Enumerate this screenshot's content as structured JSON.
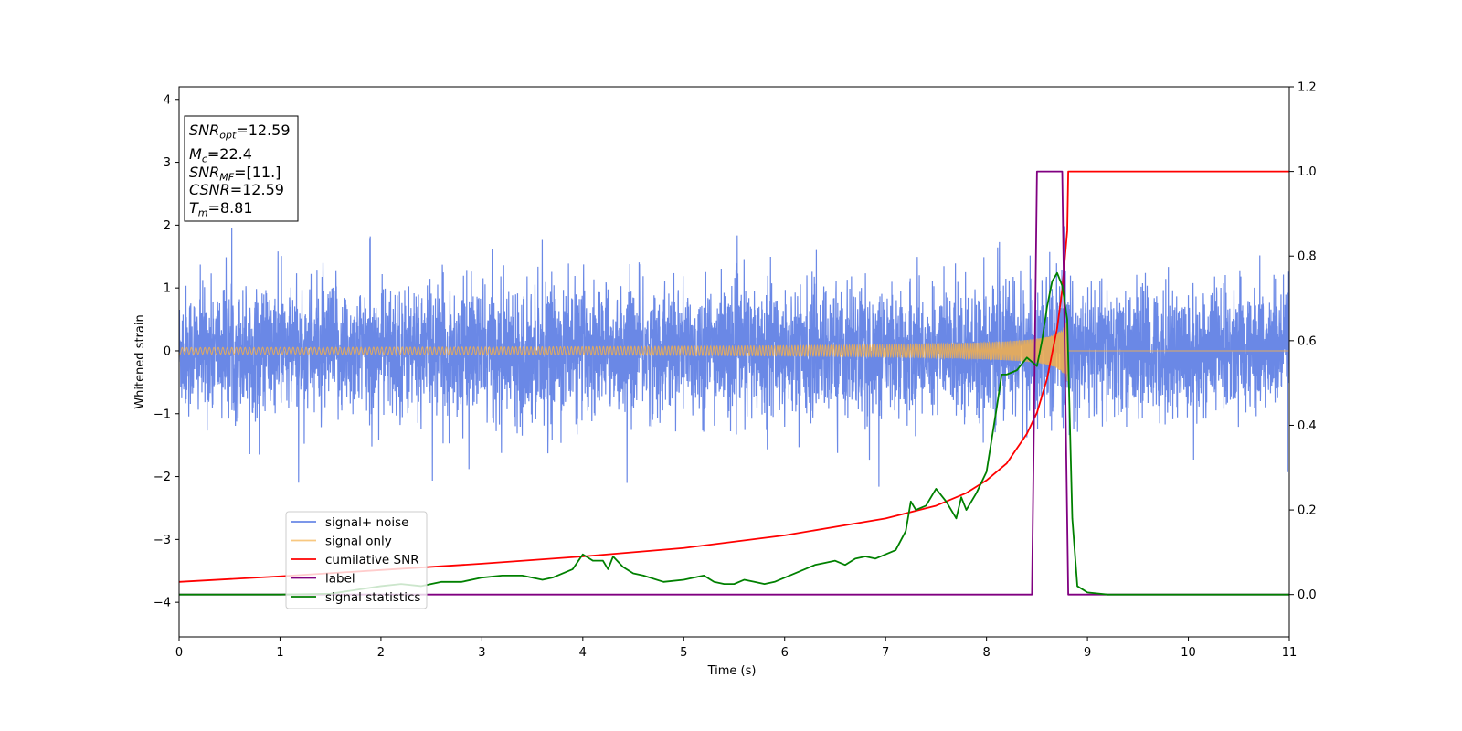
{
  "chart_data": {
    "type": "line",
    "xlabel": "Time (s)",
    "ylabel_left": "Whitened strain",
    "ylabel_right": "",
    "xlim": [
      0,
      11
    ],
    "ylim_left": [
      -4.55,
      4.2
    ],
    "ylim_right": [
      -0.1,
      1.2
    ],
    "x_ticks": [
      0,
      1,
      2,
      3,
      4,
      5,
      6,
      7,
      8,
      9,
      10,
      11
    ],
    "y_left_ticks": [
      -4,
      -3,
      -2,
      -1,
      0,
      1,
      2,
      3,
      4
    ],
    "y_right_ticks": [
      0.0,
      0.2,
      0.4,
      0.6,
      0.8,
      1.0,
      1.2
    ],
    "grid": false,
    "legend_position": "lower-left",
    "annotations": [
      {
        "base": "SNR",
        "sub": "opt",
        "rest": "=12.59"
      },
      {
        "base": "M",
        "sub": "c",
        "rest": "=22.4"
      },
      {
        "base": "SNR",
        "sub": "MF",
        "rest": "=[11.]"
      },
      {
        "base": "CSNR",
        "sub": "",
        "rest": "=12.59"
      },
      {
        "base": "T",
        "sub": "m",
        "rest": "=8.81"
      }
    ],
    "series": [
      {
        "name": "signal+ noise",
        "axis": "left",
        "color": "#6a88e6",
        "description": "whitened noise, amplitude roughly ±1.5 with spikes to ±2.1, from 0 to 11 s"
      },
      {
        "name": "signal only",
        "axis": "left",
        "color": "#f5b04a",
        "description": "chirp starting near 0 amplitude, growing to about ±0.6 at 8.8 s, then 0",
        "merger_time": 8.81,
        "peak_amplitude": 0.6
      },
      {
        "name": "cumilative SNR",
        "axis": "right",
        "color": "#ff0000",
        "x": [
          0,
          1,
          2,
          3,
          4,
          5,
          6,
          6.5,
          7,
          7.5,
          7.8,
          8.0,
          8.2,
          8.4,
          8.5,
          8.6,
          8.7,
          8.75,
          8.8,
          8.81,
          11
        ],
        "y": [
          0.03,
          0.043,
          0.058,
          0.073,
          0.09,
          0.11,
          0.14,
          0.16,
          0.18,
          0.21,
          0.24,
          0.27,
          0.31,
          0.38,
          0.43,
          0.51,
          0.63,
          0.72,
          0.86,
          1.0,
          1.0
        ]
      },
      {
        "name": "label",
        "axis": "right",
        "color": "#800080",
        "x": [
          0,
          8.45,
          8.5,
          8.75,
          8.81,
          11
        ],
        "y": [
          0,
          0,
          1,
          1,
          0,
          0
        ]
      },
      {
        "name": "signal statistics",
        "axis": "right",
        "color": "#008000",
        "x": [
          0,
          0.5,
          1,
          1.5,
          2.0,
          2.2,
          2.4,
          2.6,
          2.8,
          3.0,
          3.2,
          3.4,
          3.6,
          3.7,
          3.8,
          3.9,
          4.0,
          4.1,
          4.2,
          4.25,
          4.3,
          4.4,
          4.5,
          4.6,
          4.8,
          5.0,
          5.1,
          5.2,
          5.3,
          5.4,
          5.5,
          5.6,
          5.7,
          5.8,
          5.9,
          6.0,
          6.1,
          6.2,
          6.3,
          6.4,
          6.5,
          6.6,
          6.7,
          6.8,
          6.9,
          7.0,
          7.1,
          7.2,
          7.25,
          7.3,
          7.4,
          7.5,
          7.6,
          7.7,
          7.75,
          7.8,
          7.9,
          8.0,
          8.1,
          8.15,
          8.2,
          8.3,
          8.4,
          8.5,
          8.55,
          8.6,
          8.65,
          8.7,
          8.75,
          8.8,
          8.85,
          8.9,
          9.0,
          9.2,
          10,
          11
        ],
        "y": [
          0.0,
          0.0,
          0.0,
          0.002,
          0.02,
          0.025,
          0.02,
          0.03,
          0.03,
          0.04,
          0.045,
          0.045,
          0.035,
          0.04,
          0.05,
          0.06,
          0.095,
          0.08,
          0.08,
          0.06,
          0.09,
          0.065,
          0.05,
          0.045,
          0.03,
          0.035,
          0.04,
          0.045,
          0.03,
          0.025,
          0.025,
          0.035,
          0.03,
          0.025,
          0.03,
          0.04,
          0.05,
          0.06,
          0.07,
          0.075,
          0.08,
          0.07,
          0.085,
          0.09,
          0.085,
          0.095,
          0.105,
          0.15,
          0.22,
          0.2,
          0.21,
          0.25,
          0.22,
          0.18,
          0.23,
          0.2,
          0.24,
          0.29,
          0.44,
          0.52,
          0.52,
          0.53,
          0.56,
          0.54,
          0.6,
          0.68,
          0.74,
          0.76,
          0.73,
          0.65,
          0.18,
          0.02,
          0.005,
          0.0,
          0.0,
          0.0
        ]
      }
    ]
  }
}
